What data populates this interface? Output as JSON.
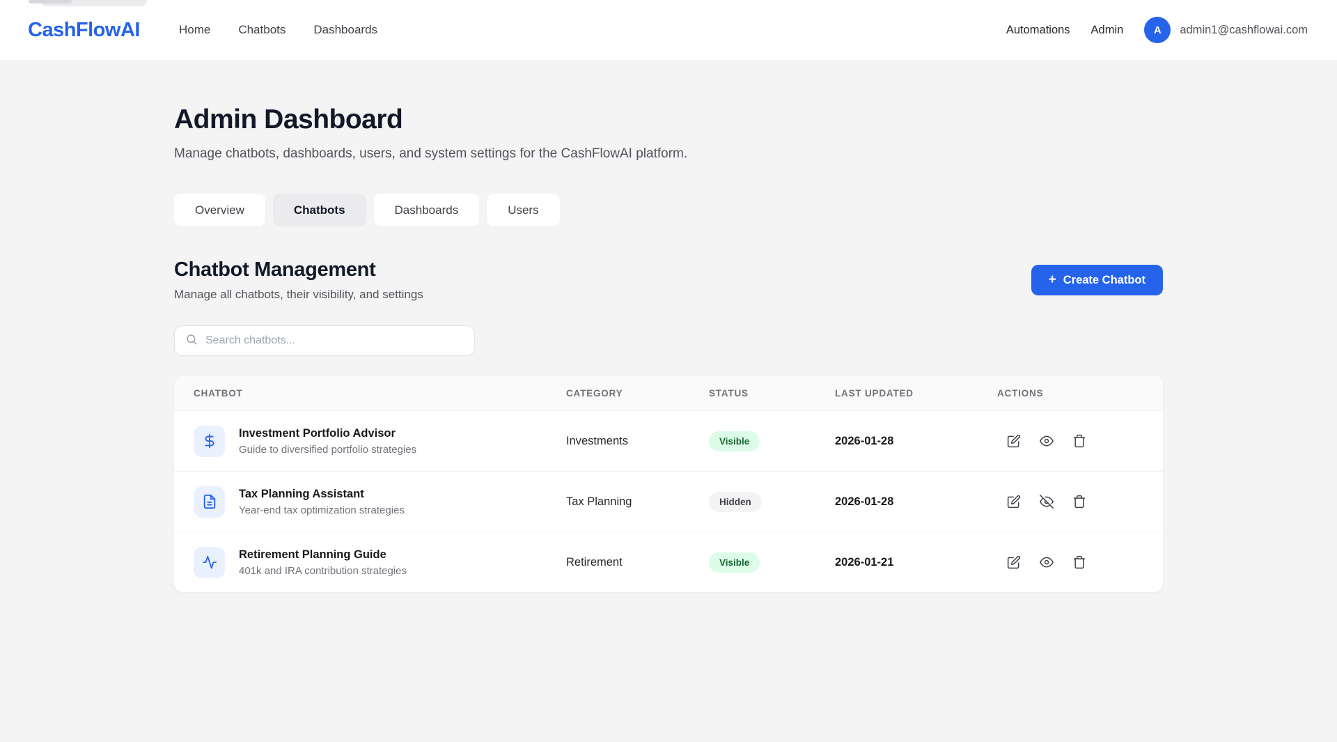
{
  "header": {
    "logo": "CashFlowAI",
    "nav": [
      {
        "label": "Home"
      },
      {
        "label": "Chatbots"
      },
      {
        "label": "Dashboards"
      }
    ],
    "right": {
      "automations_label": "Automations",
      "admin_label": "Admin",
      "avatar_initial": "A",
      "email": "admin1@cashflowai.com"
    }
  },
  "page": {
    "title": "Admin Dashboard",
    "subtitle": "Manage chatbots, dashboards, users, and system settings for the CashFlowAI platform."
  },
  "tabs": [
    {
      "label": "Overview",
      "active": false
    },
    {
      "label": "Chatbots",
      "active": true
    },
    {
      "label": "Dashboards",
      "active": false
    },
    {
      "label": "Users",
      "active": false
    }
  ],
  "section": {
    "title": "Chatbot Management",
    "subtitle": "Manage all chatbots, their visibility, and settings",
    "create_button_label": "Create Chatbot",
    "create_button_icon": "plus-icon"
  },
  "search": {
    "placeholder": "Search chatbots...",
    "value": "",
    "icon": "search-icon"
  },
  "table": {
    "columns": [
      "CHATBOT",
      "CATEGORY",
      "STATUS",
      "LAST UPDATED",
      "ACTIONS"
    ],
    "rows": [
      {
        "icon": "dollar-icon",
        "name": "Investment Portfolio Advisor",
        "description": "Guide to diversified portfolio strategies",
        "category": "Investments",
        "status": "Visible",
        "last_updated": "2026-01-28",
        "actions": [
          "edit-icon",
          "eye-icon",
          "trash-icon"
        ]
      },
      {
        "icon": "document-icon",
        "name": "Tax Planning Assistant",
        "description": "Year-end tax optimization strategies",
        "category": "Tax Planning",
        "status": "Hidden",
        "last_updated": "2026-01-28",
        "actions": [
          "edit-icon",
          "eye-off-icon",
          "trash-icon"
        ]
      },
      {
        "icon": "activity-icon",
        "name": "Retirement Planning Guide",
        "description": "401k and IRA contribution strategies",
        "category": "Retirement",
        "status": "Visible",
        "last_updated": "2026-01-21",
        "actions": [
          "edit-icon",
          "eye-icon",
          "trash-icon"
        ]
      }
    ]
  },
  "colors": {
    "accent_blue": "#2563eb",
    "visible_badge_bg": "#dcfce7",
    "visible_badge_text": "#166534",
    "hidden_badge_bg": "#f4f4f5",
    "hidden_badge_text": "#3f3f46",
    "page_bg": "#f4f4f5"
  }
}
